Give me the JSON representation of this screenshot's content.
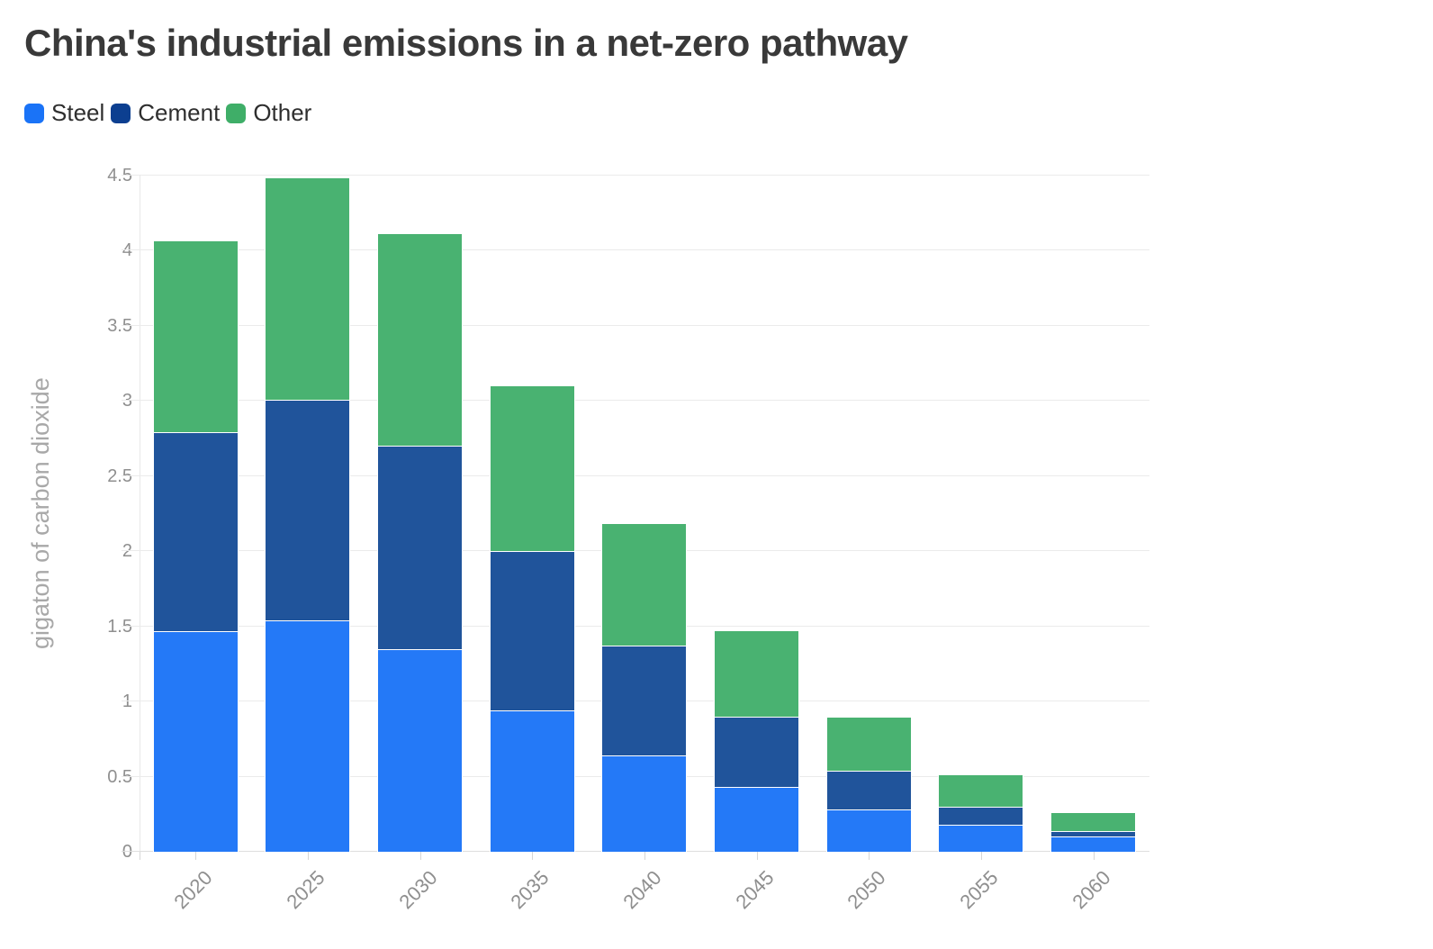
{
  "title": "China's industrial emissions in a net-zero pathway",
  "legend": {
    "items": [
      {
        "label": "Steel",
        "color": "#1a73f7"
      },
      {
        "label": "Cement",
        "color": "#0c3f90"
      },
      {
        "label": "Other",
        "color": "#3fae68"
      }
    ]
  },
  "chart_data": {
    "type": "bar",
    "stacked": true,
    "title": "China's industrial emissions in a net-zero pathway",
    "xlabel": "",
    "ylabel": "gigaton of carbon dioxide",
    "ylim": [
      0,
      4.5
    ],
    "yticks": [
      "0",
      "0.5",
      "1",
      "1.5",
      "2",
      "2.5",
      "3",
      "3.5",
      "4",
      "4.5"
    ],
    "grid": true,
    "legend_position": "top-left",
    "categories": [
      "2020",
      "2025",
      "2030",
      "2035",
      "2040",
      "2045",
      "2050",
      "2055",
      "2060"
    ],
    "series": [
      {
        "name": "Steel",
        "legend_color": "#1a73f7",
        "fill": "#2479f7",
        "values": [
          1.47,
          1.54,
          1.35,
          0.94,
          0.64,
          0.43,
          0.28,
          0.18,
          0.1
        ]
      },
      {
        "name": "Cement",
        "legend_color": "#0c3f90",
        "fill": "#20549b",
        "values": [
          1.32,
          1.47,
          1.35,
          1.06,
          0.73,
          0.47,
          0.26,
          0.12,
          0.04
        ]
      },
      {
        "name": "Other",
        "legend_color": "#3fae68",
        "fill": "#49b271",
        "values": [
          1.27,
          1.47,
          1.41,
          1.1,
          0.81,
          0.57,
          0.35,
          0.21,
          0.12
        ]
      }
    ],
    "totals": [
      4.06,
      4.48,
      4.11,
      3.1,
      2.18,
      1.47,
      0.89,
      0.51,
      0.26
    ]
  }
}
